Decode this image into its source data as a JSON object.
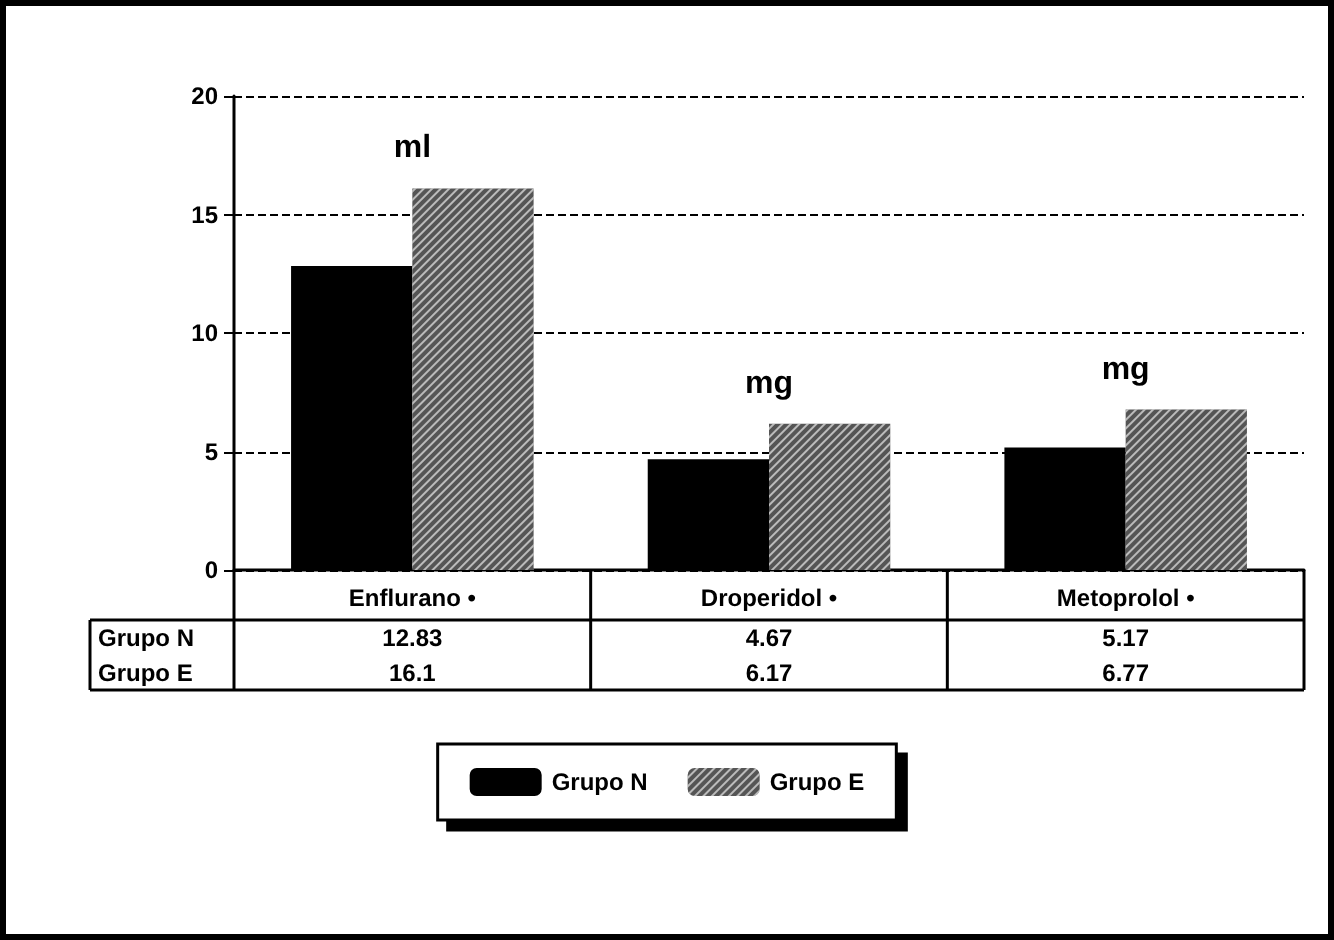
{
  "chart_data": {
    "type": "bar",
    "categories": [
      "Enflurano •",
      "Droperidol •",
      "Metoprolol •"
    ],
    "series": [
      {
        "name": "Grupo N",
        "color": "#000000",
        "values": [
          12.83,
          4.67,
          5.17
        ]
      },
      {
        "name": "Grupo E",
        "color": "#555555",
        "values": [
          16.1,
          6.17,
          6.77
        ]
      }
    ],
    "ylim": [
      0,
      20
    ],
    "yticks": [
      0,
      5,
      10,
      15,
      20
    ],
    "grid": "y",
    "legend": "bottom",
    "data_labels": true,
    "annotations": [
      "ml",
      "mg",
      "mg"
    ]
  }
}
